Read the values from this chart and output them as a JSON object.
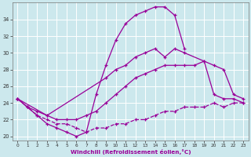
{
  "background_color": "#cce8ed",
  "grid_color": "#b0d8e0",
  "line_color": "#990099",
  "xlabel": "Windchill (Refroidissement éolien,°C)",
  "line_a_x": [
    0,
    1,
    2,
    3,
    4,
    5,
    6,
    7,
    8,
    9,
    10,
    11,
    12,
    13,
    14,
    15,
    16,
    17
  ],
  "line_a_y": [
    24.5,
    23.5,
    22.5,
    21.5,
    21.0,
    20.5,
    20.0,
    20.5,
    25.0,
    28.5,
    31.5,
    33.5,
    34.5,
    35.0,
    35.5,
    35.5,
    34.5,
    30.5
  ],
  "line_b_x": [
    0,
    3,
    9,
    10,
    11,
    12,
    13,
    14,
    15,
    16,
    17,
    19,
    20,
    21,
    22,
    23
  ],
  "line_b_y": [
    24.5,
    22.5,
    27.0,
    28.0,
    28.5,
    29.5,
    30.0,
    30.5,
    29.5,
    30.5,
    30.0,
    29.0,
    25.0,
    24.5,
    24.5,
    24.0
  ],
  "line_c_x": [
    0,
    1,
    2,
    3,
    4,
    5,
    6,
    7,
    8,
    9,
    10,
    11,
    12,
    13,
    14,
    15,
    16,
    17,
    18,
    19,
    20,
    21,
    22,
    23
  ],
  "line_c_y": [
    24.5,
    23.5,
    23.0,
    22.5,
    22.0,
    22.0,
    22.0,
    22.5,
    23.0,
    24.0,
    25.0,
    26.0,
    27.0,
    27.5,
    28.0,
    28.5,
    28.5,
    28.5,
    28.5,
    29.0,
    28.5,
    28.0,
    25.0,
    24.5
  ],
  "line_d_x": [
    0,
    1,
    2,
    3,
    4,
    5,
    6,
    7,
    8,
    9,
    10,
    11,
    12,
    13,
    14,
    15,
    16,
    17,
    18,
    19,
    20,
    21,
    22,
    23
  ],
  "line_d_y": [
    24.5,
    23.5,
    22.5,
    22.0,
    21.5,
    21.5,
    21.0,
    20.5,
    21.0,
    21.0,
    21.5,
    21.5,
    22.0,
    22.0,
    22.5,
    23.0,
    23.0,
    23.5,
    23.5,
    23.5,
    24.0,
    23.5,
    24.0,
    24.0
  ],
  "ylim": [
    19.5,
    36.0
  ],
  "yticks": [
    20,
    22,
    24,
    26,
    28,
    30,
    32,
    34
  ],
  "xlim": [
    -0.5,
    23.5
  ]
}
